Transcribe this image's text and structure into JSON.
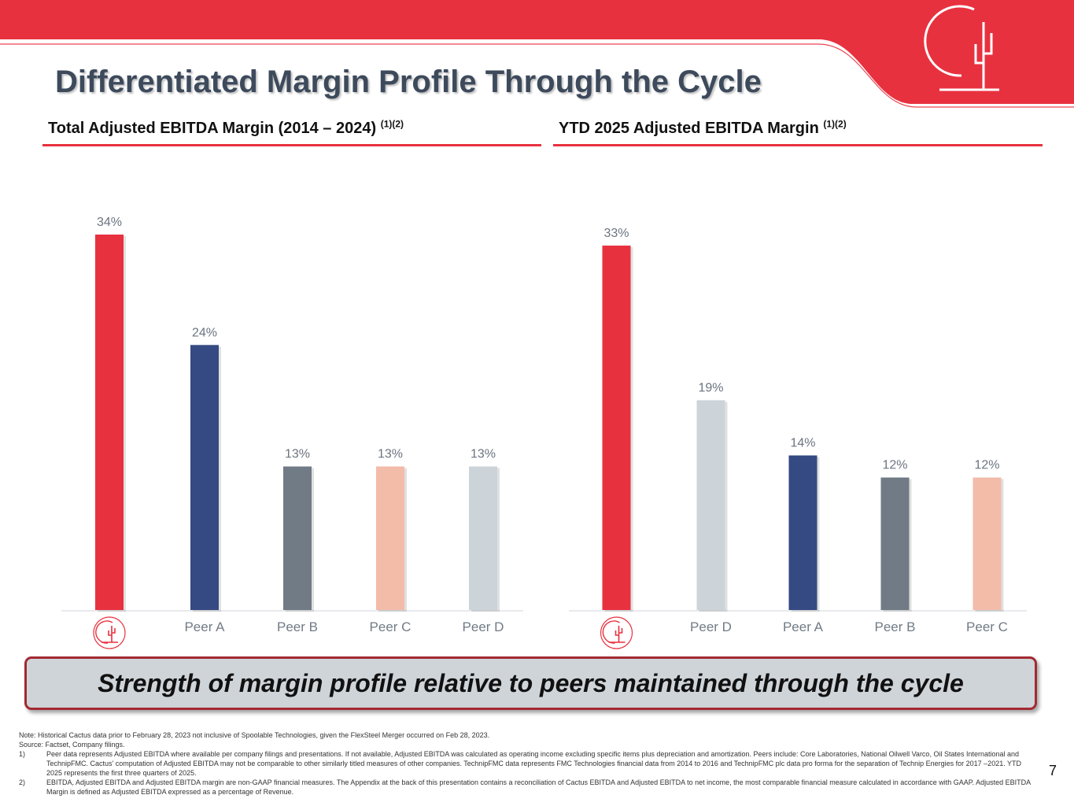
{
  "title": "Differentiated Margin Profile Through the Cycle",
  "colors": {
    "brand_red": "#e8313f",
    "navy": "#354a82",
    "slate": "#717b86",
    "peach": "#f2bca8",
    "light_gray": "#ccd4da",
    "title_gray": "#3d4a5c"
  },
  "logo": {
    "name": "cactus-logo-icon"
  },
  "sections": {
    "left": {
      "heading": "Total Adjusted EBITDA Margin (2014 – 2024)",
      "superscript": "(1)(2)"
    },
    "right": {
      "heading": "YTD 2025 Adjusted EBITDA Margin",
      "superscript": "(1)(2)"
    }
  },
  "chart_data": [
    {
      "type": "bar",
      "title": "Total Adjusted EBITDA Margin (2014 – 2024)",
      "categories": [
        "Cactus",
        "Peer A",
        "Peer B",
        "Peer C",
        "Peer D"
      ],
      "category_icons": [
        "cactus-logo-icon",
        null,
        null,
        null,
        null
      ],
      "values": [
        34,
        24,
        13,
        13,
        13
      ],
      "value_labels": [
        "34%",
        "24%",
        "13%",
        "13%",
        "13%"
      ],
      "bar_colors": [
        "#e8313f",
        "#354a82",
        "#717b86",
        "#f2bca8",
        "#ccd4da"
      ],
      "ylim": [
        0,
        34
      ],
      "xlabel": "",
      "ylabel": "",
      "grid": false
    },
    {
      "type": "bar",
      "title": "YTD 2025 Adjusted EBITDA Margin",
      "categories": [
        "Cactus",
        "Peer D",
        "Peer A",
        "Peer B",
        "Peer C"
      ],
      "category_icons": [
        "cactus-logo-icon",
        null,
        null,
        null,
        null
      ],
      "values": [
        33,
        19,
        14,
        12,
        12
      ],
      "value_labels": [
        "33%",
        "19%",
        "14%",
        "12%",
        "12%"
      ],
      "bar_colors": [
        "#e8313f",
        "#ccd4da",
        "#354a82",
        "#717b86",
        "#f2bca8"
      ],
      "ylim": [
        0,
        34
      ],
      "xlabel": "",
      "ylabel": "",
      "grid": false
    }
  ],
  "callout": "Strength of margin profile relative to peers maintained through the cycle",
  "footnotes": {
    "note": "Note: Historical Cactus data prior to February 28, 2023 not inclusive of Spoolable Technologies, given the FlexSteel Merger occurred on Feb 28, 2023.",
    "source": "Source: Factset, Company filings.",
    "items": [
      {
        "num": "1)",
        "text": "Peer data represents Adjusted EBITDA where available per company filings and presentations. If not available, Adjusted EBITDA was calculated as operating income excluding specific items plus depreciation and amortization.  Peers include: Core Laboratories, National Oilwell Varco, Oil States International and TechnipFMC. Cactus' computation of Adjusted EBITDA may not be comparable to other similarly titled measures of other companies. TechnipFMC data represents FMC Technologies financial data from 2014 to 2016 and TechnipFMC plc data pro forma for the separation of Technip Energies for 2017 –2021.  YTD 2025 represents the first three quarters of 2025."
      },
      {
        "num": "2)",
        "text": "EBITDA, Adjusted EBITDA and Adjusted EBITDA margin are non-GAAP financial measures. The Appendix at the back of this presentation contains a reconciliation of Cactus EBITDA and Adjusted EBITDA to net income, the most comparable financial measure calculated in accordance with GAAP.  Adjusted EBITDA Margin is defined as Adjusted EBITDA expressed as a percentage of Revenue."
      }
    ]
  },
  "page_number": "7"
}
